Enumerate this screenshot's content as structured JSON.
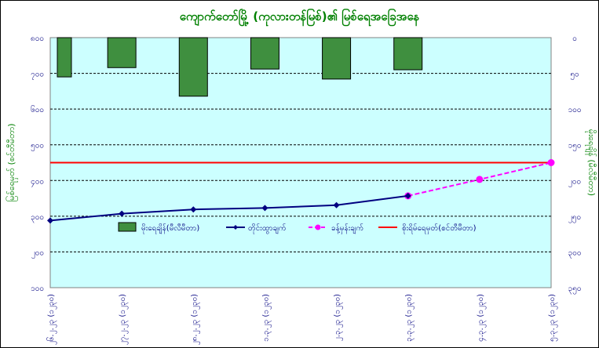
{
  "chart_data": {
    "type": "bar+line",
    "title": "ကျောက်တော်မြို့ (ကုလားတန်မြစ်)၏ မြစ်ရေအခြေအနေ",
    "ylabel_left": "မြစ်ရေမှတ် (စင်တီမီတာ)",
    "ylabel_right": "မိုးရေချိန် (မီလီမီတာ)",
    "categories": [
      "၂၆.၂.၂၃ (၁၂၃၀)",
      "၂၇.၂.၂၃ (၁၂၃၀)",
      "၂၈.၂.၂၃ (၁၂၃၀)",
      "၁.၃.၂၃ (၁၂၃၀)",
      "၂.၃.၂၃ (၁၂၃၀)",
      "၃.၃.၂၃ (၁၂၃၀)",
      "၄.၃.၂၃ (၁၂၃၀)",
      "၅.၃.၂၃ (၁၂၃၀)"
    ],
    "left_axis": {
      "min": 100,
      "max": 800,
      "ticks": [
        "၁၀၀",
        "၂၀၀",
        "၃၀၀",
        "၄၀၀",
        "၅၀၀",
        "၆၀၀",
        "၇၀၀",
        "၈၀၀"
      ],
      "tick_values": [
        100,
        200,
        300,
        400,
        500,
        600,
        700,
        800
      ]
    },
    "right_axis": {
      "min": 0,
      "max": 350,
      "reversed": true,
      "ticks": [
        "၀",
        "၅၀",
        "၁၀၀",
        "၁၅၀",
        "၂၀၀",
        "၂၅၀",
        "၃၀၀",
        "၃၅၀"
      ],
      "tick_values": [
        0,
        50,
        100,
        150,
        200,
        250,
        300,
        350
      ]
    },
    "rainfall": {
      "name": "မိုးရေချိန်(မီလီမီတာ)",
      "values": [
        55,
        42,
        82,
        44,
        58,
        45,
        null,
        null
      ],
      "color": "#3f8f3f"
    },
    "observed": {
      "name": "တိုင်းထွာချက်",
      "values": [
        288,
        307,
        319,
        323,
        331,
        357,
        null,
        null
      ],
      "color": "#000080"
    },
    "forecast": {
      "name": "ခန့်မှန်းချက်",
      "x_index": [
        5,
        6,
        7
      ],
      "values": [
        357,
        403,
        450
      ],
      "color": "#ff00ff"
    },
    "danger": {
      "name": "စိုးရိမ်ရေမှတ်(စင်တီမီတာ)",
      "value": 450,
      "color": "#ff0000"
    },
    "grid": true,
    "legend": "center",
    "plot_bg": "#ccffff"
  }
}
